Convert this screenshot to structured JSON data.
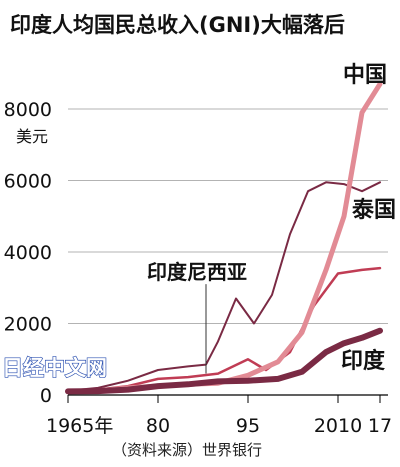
{
  "chart_data": {
    "type": "line",
    "title": "印度人均国民总收入(GNI)大幅落后",
    "ylabel": "美元",
    "source": "（资料来源）世界银行",
    "watermark": "日经中文网",
    "x_tick_labels": [
      "1965年",
      "80",
      "95",
      "2010",
      "17"
    ],
    "x_ticks": [
      1965,
      1980,
      1995,
      2010,
      2017
    ],
    "y_ticks": [
      0,
      2000,
      4000,
      6000,
      8000
    ],
    "y_tick_labels": [
      "0",
      "2000",
      "4000",
      "6000",
      "8000"
    ],
    "xlim": [
      1965,
      2017
    ],
    "ylim": [
      0,
      8700
    ],
    "grid": "horizontal",
    "series": [
      {
        "name": "泰国",
        "color": "#7a2a44",
        "width": 2,
        "x": [
          1965,
          1970,
          1975,
          1980,
          1985,
          1988,
          1990,
          1993,
          1996,
          1999,
          2002,
          2005,
          2008,
          2011,
          2014,
          2017
        ],
        "y": [
          120,
          200,
          400,
          700,
          800,
          850,
          1500,
          2700,
          2000,
          2800,
          4500,
          5700,
          5950,
          5900,
          5700,
          5950
        ]
      },
      {
        "name": "印度尼西亚",
        "color": "#c03c54",
        "width": 2.5,
        "x": [
          1965,
          1970,
          1975,
          1980,
          1985,
          1990,
          1995,
          1998,
          2002,
          2006,
          2010,
          2014,
          2017
        ],
        "y": [
          100,
          150,
          250,
          450,
          500,
          600,
          1000,
          700,
          1200,
          2500,
          3400,
          3500,
          3550
        ],
        "label_leader": [
          [
            1988,
            3100
          ],
          [
            1988,
            600
          ]
        ]
      },
      {
        "name": "中国",
        "color": "#e28b95",
        "width": 5,
        "x": [
          1965,
          1970,
          1975,
          1980,
          1985,
          1990,
          1995,
          2000,
          2004,
          2008,
          2011,
          2014,
          2017
        ],
        "y": [
          100,
          110,
          200,
          250,
          300,
          330,
          550,
          930,
          1750,
          3500,
          5000,
          7900,
          8700
        ]
      },
      {
        "name": "印度",
        "color": "#7a2a44",
        "width": 6,
        "x": [
          1965,
          1970,
          1975,
          1980,
          1985,
          1990,
          1995,
          2000,
          2004,
          2008,
          2011,
          2014,
          2017
        ],
        "y": [
          100,
          110,
          150,
          250,
          300,
          380,
          400,
          450,
          650,
          1200,
          1450,
          1600,
          1800
        ]
      }
    ]
  }
}
